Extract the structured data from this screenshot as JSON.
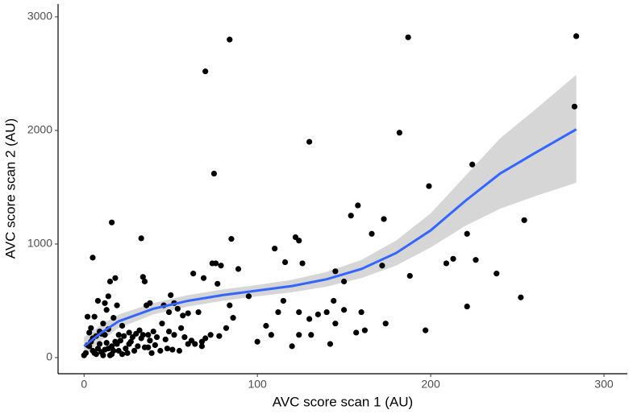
{
  "chart_data": {
    "type": "scatter",
    "x_label": "AVC score scan 1 (AU)",
    "y_label": "AVC score scan 2 (AU)",
    "xlim": [
      -15,
      313.5
    ],
    "ylim": [
      -142,
      3113
    ],
    "xticks": [
      0,
      100,
      200,
      300
    ],
    "yticks": [
      0,
      1000,
      2000,
      3000
    ],
    "grid": false,
    "point_color": "#000000",
    "x": [
      84,
      187,
      284,
      283,
      70,
      182,
      130,
      75,
      224,
      199,
      16,
      33,
      85,
      154,
      158,
      173,
      166,
      221,
      254,
      5,
      122,
      124,
      110,
      116,
      126,
      209,
      213,
      226,
      188,
      238,
      172,
      145,
      150,
      252,
      221,
      197,
      174,
      160,
      157,
      162,
      140,
      145,
      135,
      130,
      124,
      112,
      100,
      105,
      108,
      115,
      120,
      124,
      131,
      142,
      144,
      150,
      84,
      86,
      89,
      74,
      76,
      79,
      77,
      66,
      63,
      69,
      95,
      50,
      52,
      38,
      36,
      34,
      35,
      46,
      49,
      54,
      57,
      60,
      60,
      73,
      78,
      82,
      68,
      68,
      64,
      55,
      52,
      49,
      47,
      45,
      42,
      40,
      38,
      37,
      34,
      32,
      31,
      29,
      28,
      26,
      24,
      22,
      20,
      19,
      18,
      17,
      15,
      14,
      13,
      12,
      11,
      10,
      9,
      8,
      7,
      6,
      5,
      4,
      3,
      2,
      1,
      0,
      2,
      3,
      4,
      6,
      7,
      8,
      9,
      10,
      11,
      12,
      13,
      14,
      15,
      16,
      17,
      18,
      19,
      20,
      21,
      23,
      25,
      26,
      27,
      30,
      33,
      35,
      37,
      39,
      41,
      44,
      48,
      51,
      56,
      58,
      62,
      70,
      12,
      14,
      16,
      5,
      22
    ],
    "y": [
      2800,
      2820,
      2830,
      2210,
      2520,
      1980,
      1900,
      1620,
      1700,
      1510,
      1190,
      1050,
      1045,
      1250,
      1340,
      1220,
      1090,
      1090,
      1210,
      880,
      1060,
      1030,
      960,
      840,
      830,
      830,
      870,
      860,
      720,
      740,
      810,
      760,
      670,
      530,
      450,
      240,
      300,
      400,
      220,
      240,
      400,
      300,
      380,
      340,
      400,
      400,
      140,
      280,
      200,
      500,
      100,
      200,
      200,
      120,
      500,
      420,
      460,
      350,
      780,
      830,
      830,
      810,
      650,
      400,
      740,
      700,
      540,
      550,
      480,
      480,
      460,
      710,
      670,
      460,
      400,
      430,
      370,
      120,
      390,
      200,
      190,
      260,
      140,
      100,
      120,
      60,
      200,
      230,
      160,
      300,
      180,
      230,
      150,
      90,
      200,
      240,
      100,
      60,
      180,
      120,
      80,
      280,
      200,
      460,
      700,
      350,
      670,
      540,
      420,
      480,
      300,
      210,
      120,
      80,
      30,
      40,
      170,
      260,
      100,
      360,
      40,
      20,
      110,
      220,
      140,
      360,
      190,
      500,
      230,
      50,
      20,
      70,
      130,
      250,
      20,
      100,
      60,
      140,
      120,
      60,
      150,
      190,
      40,
      220,
      140,
      210,
      170,
      90,
      200,
      40,
      110,
      60,
      80,
      70,
      260,
      180,
      150,
      170,
      200,
      80,
      30,
      60,
      30
    ],
    "fit": {
      "color": "#3366ff",
      "band_color": "#cccccc",
      "x": [
        0,
        10,
        20,
        40,
        60,
        80,
        100,
        120,
        140,
        160,
        180,
        200,
        220,
        240,
        260,
        284
      ],
      "y": [
        100,
        220,
        320,
        430,
        500,
        550,
        590,
        630,
        690,
        780,
        920,
        1120,
        1380,
        1620,
        1800,
        2010
      ],
      "lower": [
        20,
        150,
        260,
        380,
        450,
        500,
        540,
        575,
        625,
        700,
        810,
        970,
        1160,
        1310,
        1420,
        1540
      ],
      "upper": [
        180,
        290,
        380,
        480,
        550,
        600,
        640,
        685,
        755,
        860,
        1030,
        1270,
        1600,
        1930,
        2180,
        2490
      ]
    }
  }
}
